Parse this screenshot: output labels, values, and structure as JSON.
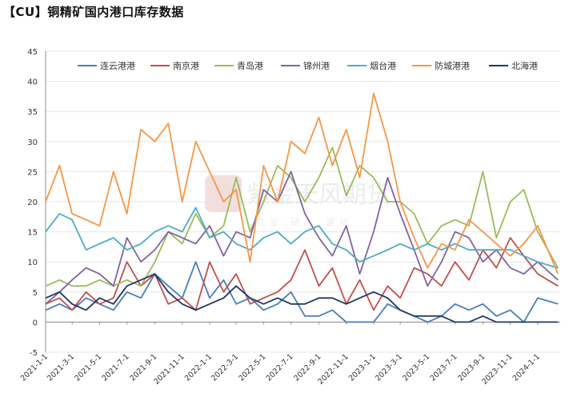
{
  "title": "【CU】铜精矿国内港口库存数据",
  "watermark": {
    "name": "紫金天风期货",
    "tagline": "立足·研究·驱动"
  },
  "chart_data": {
    "type": "line",
    "ylim": [
      -5,
      45
    ],
    "yticks": [
      -5,
      0,
      5,
      10,
      15,
      20,
      25,
      30,
      35,
      40,
      45
    ],
    "xrange": [
      "2021-01-01",
      "2024-02-20"
    ],
    "xticks": [
      "2021-1-1",
      "2021-3-1",
      "2021-5-1",
      "2021-7-1",
      "2021-9-1",
      "2021-11-1",
      "2022-1-1",
      "2022-3-1",
      "2022-5-1",
      "2022-7-1",
      "2022-9-1",
      "2022-11-1",
      "2023-1-1",
      "2023-3-1",
      "2023-5-1",
      "2023-7-1",
      "2023-9-1",
      "2023-11-1",
      "2024-1-1"
    ],
    "legend_position": "top",
    "series": [
      {
        "name": "连云港港",
        "color": "#4a7ebb",
        "x": [
          "2021-01-01",
          "2021-02-01",
          "2021-03-01",
          "2021-04-01",
          "2021-05-01",
          "2021-06-01",
          "2021-07-01",
          "2021-08-01",
          "2021-09-01",
          "2021-10-01",
          "2021-11-01",
          "2021-12-01",
          "2022-01-01",
          "2022-02-01",
          "2022-03-01",
          "2022-04-01",
          "2022-05-01",
          "2022-06-01",
          "2022-07-01",
          "2022-08-01",
          "2022-09-01",
          "2022-10-01",
          "2022-11-01",
          "2022-12-01",
          "2023-01-01",
          "2023-02-01",
          "2023-03-01",
          "2023-04-01",
          "2023-05-01",
          "2023-06-01",
          "2023-07-01",
          "2023-08-01",
          "2023-09-01",
          "2023-10-01",
          "2023-11-01",
          "2023-12-01",
          "2024-01-01",
          "2024-02-15"
        ],
        "values": [
          2,
          3,
          2,
          4,
          3,
          2,
          5,
          4,
          8,
          6,
          4,
          10,
          4,
          7,
          3,
          4,
          2,
          3,
          5,
          1,
          1,
          2,
          0,
          0,
          0,
          3,
          2,
          1,
          0,
          1,
          3,
          2,
          3,
          1,
          2,
          0,
          4,
          3
        ]
      },
      {
        "name": "南京港",
        "color": "#c0504d",
        "x": [
          "2021-01-01",
          "2021-02-01",
          "2021-03-01",
          "2021-04-01",
          "2021-05-01",
          "2021-06-01",
          "2021-07-01",
          "2021-08-01",
          "2021-09-01",
          "2021-10-01",
          "2021-11-01",
          "2021-12-01",
          "2022-01-01",
          "2022-02-01",
          "2022-03-01",
          "2022-04-01",
          "2022-05-01",
          "2022-06-01",
          "2022-07-01",
          "2022-08-01",
          "2022-09-01",
          "2022-10-01",
          "2022-11-01",
          "2022-12-01",
          "2023-01-01",
          "2023-02-01",
          "2023-03-01",
          "2023-04-01",
          "2023-05-01",
          "2023-06-01",
          "2023-07-01",
          "2023-08-01",
          "2023-09-01",
          "2023-10-01",
          "2023-11-01",
          "2023-12-01",
          "2024-01-01",
          "2024-02-15"
        ],
        "values": [
          3,
          4,
          2,
          5,
          3,
          4,
          10,
          6,
          8,
          3,
          4,
          2,
          10,
          5,
          8,
          3,
          4,
          5,
          7,
          12,
          6,
          9,
          3,
          7,
          2,
          6,
          4,
          9,
          8,
          6,
          10,
          7,
          12,
          9,
          14,
          11,
          8,
          6
        ]
      },
      {
        "name": "青岛港",
        "color": "#9bbb59",
        "x": [
          "2021-01-01",
          "2021-02-01",
          "2021-03-01",
          "2021-04-01",
          "2021-05-01",
          "2021-06-01",
          "2021-07-01",
          "2021-08-01",
          "2021-09-01",
          "2021-10-01",
          "2021-11-01",
          "2021-12-01",
          "2022-01-01",
          "2022-02-01",
          "2022-03-01",
          "2022-04-01",
          "2022-05-01",
          "2022-06-01",
          "2022-07-01",
          "2022-08-01",
          "2022-09-01",
          "2022-10-01",
          "2022-11-01",
          "2022-12-01",
          "2023-01-01",
          "2023-02-01",
          "2023-03-01",
          "2023-04-01",
          "2023-05-01",
          "2023-06-01",
          "2023-07-01",
          "2023-08-01",
          "2023-09-01",
          "2023-10-01",
          "2023-11-01",
          "2023-12-01",
          "2024-01-01",
          "2024-02-15"
        ],
        "values": [
          6,
          7,
          6,
          6,
          7,
          6,
          7,
          6,
          10,
          15,
          13,
          18,
          14,
          16,
          24,
          15,
          20,
          26,
          24,
          20,
          24,
          29,
          21,
          26,
          24,
          20,
          20,
          18,
          13,
          16,
          17,
          16,
          25,
          14,
          20,
          22,
          15,
          9
        ]
      },
      {
        "name": "锦州港",
        "color": "#8064a2",
        "x": [
          "2021-01-01",
          "2021-02-01",
          "2021-03-01",
          "2021-04-01",
          "2021-05-01",
          "2021-06-01",
          "2021-07-01",
          "2021-08-01",
          "2021-09-01",
          "2021-10-01",
          "2021-11-01",
          "2021-12-01",
          "2022-01-01",
          "2022-02-01",
          "2022-03-01",
          "2022-04-01",
          "2022-05-01",
          "2022-06-01",
          "2022-07-01",
          "2022-08-01",
          "2022-09-01",
          "2022-10-01",
          "2022-11-01",
          "2022-12-01",
          "2023-01-01",
          "2023-02-01",
          "2023-03-01",
          "2023-04-01",
          "2023-05-01",
          "2023-06-01",
          "2023-07-01",
          "2023-08-01",
          "2023-09-01",
          "2023-10-01",
          "2023-11-01",
          "2023-12-01",
          "2024-01-01",
          "2024-02-15"
        ],
        "values": [
          3,
          5,
          7,
          9,
          8,
          6,
          14,
          10,
          12,
          15,
          14,
          13,
          16,
          11,
          15,
          14,
          22,
          20,
          25,
          18,
          14,
          11,
          16,
          8,
          15,
          24,
          18,
          12,
          6,
          10,
          15,
          14,
          10,
          12,
          9,
          8,
          10,
          7
        ]
      },
      {
        "name": "烟台港",
        "color": "#4bacc6",
        "x": [
          "2021-01-01",
          "2021-02-01",
          "2021-03-01",
          "2021-04-01",
          "2021-05-01",
          "2021-06-01",
          "2021-07-01",
          "2021-08-01",
          "2021-09-01",
          "2021-10-01",
          "2021-11-01",
          "2021-12-01",
          "2022-01-01",
          "2022-02-01",
          "2022-03-01",
          "2022-04-01",
          "2022-05-01",
          "2022-06-01",
          "2022-07-01",
          "2022-08-01",
          "2022-09-01",
          "2022-10-01",
          "2022-11-01",
          "2022-12-01",
          "2023-01-01",
          "2023-02-01",
          "2023-03-01",
          "2023-04-01",
          "2023-05-01",
          "2023-06-01",
          "2023-07-01",
          "2023-08-01",
          "2023-09-01",
          "2023-10-01",
          "2023-11-01",
          "2023-12-01",
          "2024-01-01",
          "2024-02-15"
        ],
        "values": [
          15,
          18,
          17,
          12,
          13,
          14,
          12,
          13,
          15,
          16,
          15,
          19,
          14,
          15,
          13,
          12,
          14,
          15,
          13,
          15,
          16,
          13,
          12,
          10,
          11,
          12,
          13,
          12,
          13,
          12,
          13,
          12,
          12,
          12,
          12,
          11,
          10,
          9
        ]
      },
      {
        "name": "防城港港",
        "color": "#f79646",
        "x": [
          "2021-01-01",
          "2021-02-01",
          "2021-03-01",
          "2021-04-01",
          "2021-05-01",
          "2021-06-01",
          "2021-07-01",
          "2021-08-01",
          "2021-09-01",
          "2021-10-01",
          "2021-11-01",
          "2021-12-01",
          "2022-01-01",
          "2022-02-01",
          "2022-03-01",
          "2022-04-01",
          "2022-05-01",
          "2022-06-01",
          "2022-07-01",
          "2022-08-01",
          "2022-09-01",
          "2022-10-01",
          "2022-11-01",
          "2022-12-01",
          "2023-01-01",
          "2023-02-01",
          "2023-03-01",
          "2023-04-01",
          "2023-05-01",
          "2023-06-01",
          "2023-07-01",
          "2023-08-01",
          "2023-09-01",
          "2023-10-01",
          "2023-11-01",
          "2023-12-01",
          "2024-01-01",
          "2024-02-15"
        ],
        "values": [
          20,
          26,
          18,
          17,
          16,
          25,
          18,
          32,
          30,
          33,
          20,
          30,
          25,
          20,
          22,
          10,
          26,
          20,
          30,
          28,
          34,
          26,
          32,
          24,
          38,
          30,
          20,
          14,
          9,
          13,
          12,
          17,
          15,
          13,
          11,
          13,
          16,
          8
        ]
      },
      {
        "name": "北海港",
        "color": "#1f3864",
        "x": [
          "2021-01-01",
          "2021-02-01",
          "2021-03-01",
          "2021-04-01",
          "2021-05-01",
          "2021-06-01",
          "2021-07-01",
          "2021-08-01",
          "2021-09-01",
          "2021-10-01",
          "2021-11-01",
          "2021-12-01",
          "2022-01-01",
          "2022-02-01",
          "2022-03-01",
          "2022-04-01",
          "2022-05-01",
          "2022-06-01",
          "2022-07-01",
          "2022-08-01",
          "2022-09-01",
          "2022-10-01",
          "2022-11-01",
          "2022-12-01",
          "2023-01-01",
          "2023-02-01",
          "2023-03-01",
          "2023-04-01",
          "2023-05-01",
          "2023-06-01",
          "2023-07-01",
          "2023-08-01",
          "2023-09-01",
          "2023-10-01",
          "2023-11-01",
          "2023-12-01",
          "2024-01-01",
          "2024-02-15"
        ],
        "values": [
          4,
          5,
          3,
          2,
          4,
          3,
          6,
          7,
          8,
          5,
          3,
          2,
          3,
          4,
          6,
          4,
          3,
          4,
          3,
          3,
          4,
          4,
          3,
          4,
          5,
          4,
          2,
          1,
          1,
          1,
          0,
          0,
          1,
          0,
          0,
          0,
          0,
          0
        ]
      }
    ]
  }
}
